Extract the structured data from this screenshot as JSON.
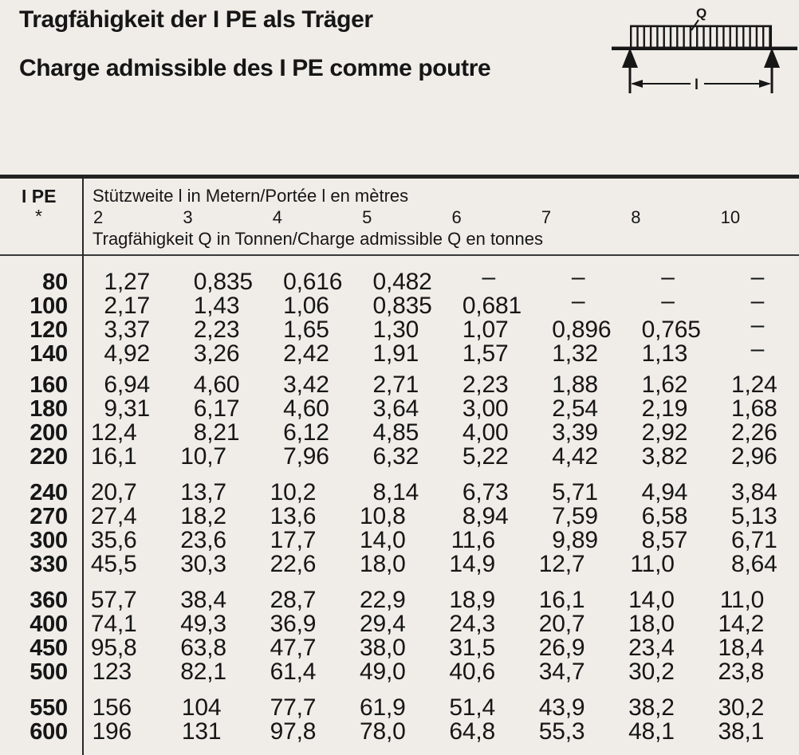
{
  "page": {
    "title_de": "Tragfähigkeit der I PE als Träger",
    "title_fr": "Charge admissible des I PE comme poutre"
  },
  "diagram": {
    "load_label": "Q",
    "span_label": "l"
  },
  "table": {
    "col_header": {
      "line1": "I PE",
      "line2": "*"
    },
    "span_header": "Stützweite l in Metern/Portée l en mètres",
    "unit_header": "Tragfähigkeit Q in Tonnen/Charge admissible Q en tonnes",
    "spans": [
      "2",
      "3",
      "4",
      "5",
      "6",
      "7",
      "8",
      "10"
    ],
    "groups": [
      {
        "rows": [
          {
            "ipe": "80",
            "values": [
              "1,27",
              "0,835",
              "0,616",
              "0,482",
              "–",
              "–",
              "–",
              "–"
            ]
          },
          {
            "ipe": "100",
            "values": [
              "2,17",
              "1,43",
              "1,06",
              "0,835",
              "0,681",
              "–",
              "–",
              "–"
            ]
          },
          {
            "ipe": "120",
            "values": [
              "3,37",
              "2,23",
              "1,65",
              "1,30",
              "1,07",
              "0,896",
              "0,765",
              "–"
            ]
          },
          {
            "ipe": "140",
            "values": [
              "4,92",
              "3,26",
              "2,42",
              "1,91",
              "1,57",
              "1,32",
              "1,13",
              "–"
            ]
          }
        ]
      },
      {
        "rows": [
          {
            "ipe": "160",
            "values": [
              "6,94",
              "4,60",
              "3,42",
              "2,71",
              "2,23",
              "1,88",
              "1,62",
              "1,24"
            ]
          },
          {
            "ipe": "180",
            "values": [
              "9,31",
              "6,17",
              "4,60",
              "3,64",
              "3,00",
              "2,54",
              "2,19",
              "1,68"
            ]
          },
          {
            "ipe": "200",
            "values": [
              "12,4",
              "8,21",
              "6,12",
              "4,85",
              "4,00",
              "3,39",
              "2,92",
              "2,26"
            ]
          },
          {
            "ipe": "220",
            "values": [
              "16,1",
              "10,7",
              "7,96",
              "6,32",
              "5,22",
              "4,42",
              "3,82",
              "2,96"
            ]
          }
        ]
      },
      {
        "rows": [
          {
            "ipe": "240",
            "values": [
              "20,7",
              "13,7",
              "10,2",
              "8,14",
              "6,73",
              "5,71",
              "4,94",
              "3,84"
            ]
          },
          {
            "ipe": "270",
            "values": [
              "27,4",
              "18,2",
              "13,6",
              "10,8",
              "8,94",
              "7,59",
              "6,58",
              "5,13"
            ]
          },
          {
            "ipe": "300",
            "values": [
              "35,6",
              "23,6",
              "17,7",
              "14,0",
              "11,6",
              "9,89",
              "8,57",
              "6,71"
            ]
          },
          {
            "ipe": "330",
            "values": [
              "45,5",
              "30,3",
              "22,6",
              "18,0",
              "14,9",
              "12,7",
              "11,0",
              "8,64"
            ]
          }
        ]
      },
      {
        "rows": [
          {
            "ipe": "360",
            "values": [
              "57,7",
              "38,4",
              "28,7",
              "22,9",
              "18,9",
              "16,1",
              "14,0",
              "11,0"
            ]
          },
          {
            "ipe": "400",
            "values": [
              "74,1",
              "49,3",
              "36,9",
              "29,4",
              "24,3",
              "20,7",
              "18,0",
              "14,2"
            ]
          },
          {
            "ipe": "450",
            "values": [
              "95,8",
              "63,8",
              "47,7",
              "38,0",
              "31,5",
              "26,9",
              "23,4",
              "18,4"
            ]
          },
          {
            "ipe": "500",
            "values": [
              "123",
              "82,1",
              "61,4",
              "49,0",
              "40,6",
              "34,7",
              "30,2",
              "23,8"
            ]
          }
        ]
      },
      {
        "rows": [
          {
            "ipe": "550",
            "values": [
              "156",
              "104",
              "77,7",
              "61,9",
              "51,4",
              "43,9",
              "38,2",
              "30,2"
            ]
          },
          {
            "ipe": "600",
            "values": [
              "196",
              "131",
              "97,8",
              "78,0",
              "64,8",
              "55,3",
              "48,1",
              "38,1"
            ]
          }
        ]
      }
    ]
  }
}
